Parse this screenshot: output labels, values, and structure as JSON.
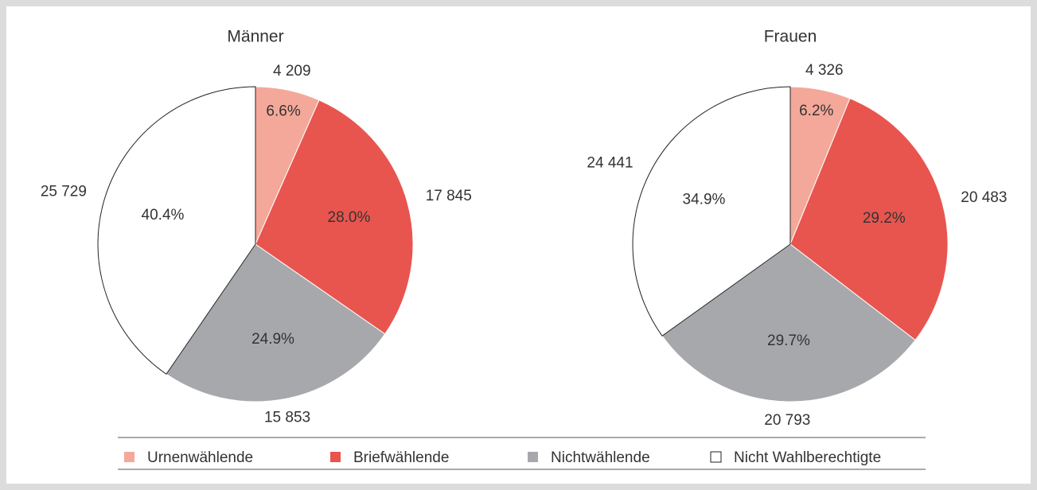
{
  "chart_data": [
    {
      "type": "pie",
      "title": "Männer",
      "categories": [
        "Urnenwählende",
        "Briefwählende",
        "Nichtwählende",
        "Nicht Wahlberechtigte"
      ],
      "values": [
        4209,
        17845,
        15853,
        25729
      ],
      "value_labels": [
        "4 209",
        "17 845",
        "15 853",
        "25 729"
      ],
      "shares": [
        6.6,
        28.0,
        24.9,
        40.4
      ],
      "share_labels": [
        "6.6%",
        "28.0%",
        "24.9%",
        "40.4%"
      ],
      "colors": [
        "#f4a89a",
        "#e8554f",
        "#a7a8ac",
        "#ffffff"
      ]
    },
    {
      "type": "pie",
      "title": "Frauen",
      "categories": [
        "Urnenwählende",
        "Briefwählende",
        "Nichtwählende",
        "Nicht Wahlberechtigte"
      ],
      "values": [
        4326,
        20483,
        20793,
        24441
      ],
      "value_labels": [
        "4 326",
        "20 483",
        "20 793",
        "24 441"
      ],
      "shares": [
        6.2,
        29.2,
        29.7,
        34.9
      ],
      "share_labels": [
        "6.2%",
        "29.2%",
        "29.7%",
        "34.9%"
      ],
      "colors": [
        "#f4a89a",
        "#e8554f",
        "#a7a8ac",
        "#ffffff"
      ]
    }
  ]
}
